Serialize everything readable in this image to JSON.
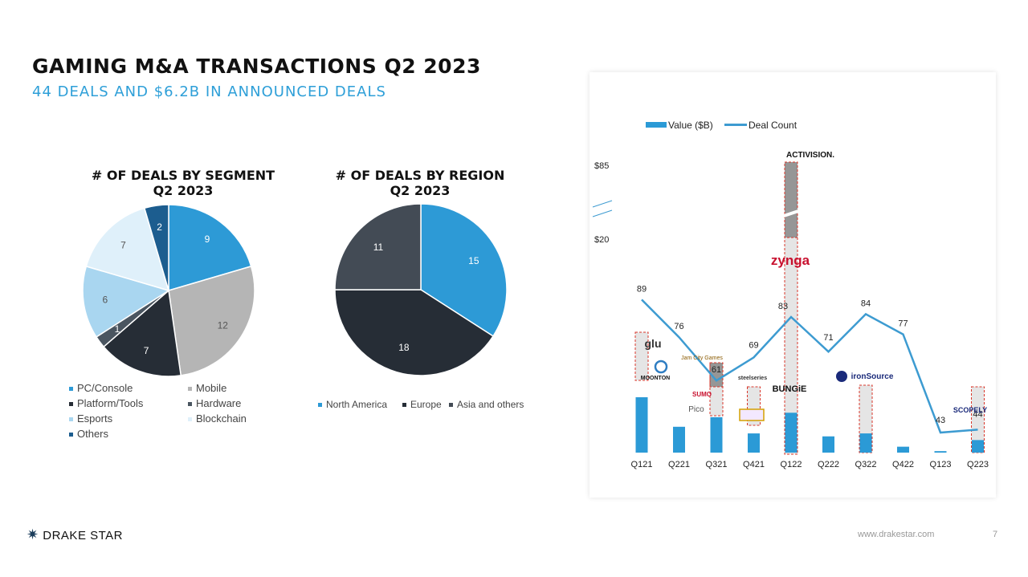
{
  "header": {
    "title": "GAMING M&A TRANSACTIONS Q2 2023",
    "subtitle": "44 DEALS AND $6.2B IN ANNOUNCED DEALS"
  },
  "colors": {
    "accent": "#2e9fd8",
    "line": "#3d9bd1",
    "bar": "#2b9ad6"
  },
  "chart_data": [
    {
      "type": "pie",
      "title_line1": "# OF DEALS BY SEGMENT",
      "title_line2": "Q2 2023",
      "slices": [
        {
          "label": "PC/Console",
          "value": 9,
          "color": "#2d9ad6"
        },
        {
          "label": "Mobile",
          "value": 12,
          "color": "#b5b5b5"
        },
        {
          "label": "Platform/Tools",
          "value": 7,
          "color": "#262d36"
        },
        {
          "label": "Hardware",
          "value": 1,
          "color": "#4a5560"
        },
        {
          "label": "Esports",
          "value": 6,
          "color": "#a9d6f0"
        },
        {
          "label": "Blockchain",
          "value": 7,
          "color": "#dff0fa"
        },
        {
          "label": "Others",
          "value": 2,
          "color": "#1c5d8f"
        }
      ]
    },
    {
      "type": "pie",
      "title_line1": "# OF DEALS BY REGION",
      "title_line2": "Q2 2023",
      "slices": [
        {
          "label": "North America",
          "value": 15,
          "color": "#2d9ad6"
        },
        {
          "label": "Europe",
          "value": 18,
          "color": "#262d36"
        },
        {
          "label": "Asia and others",
          "value": 11,
          "color": "#434b55"
        }
      ]
    },
    {
      "type": "bar",
      "legend": [
        "Value ($B)",
        "Deal Count"
      ],
      "y_tick_labels": [
        "$85",
        "$20"
      ],
      "categories": [
        "Q121",
        "Q221",
        "Q321",
        "Q421",
        "Q122",
        "Q222",
        "Q322",
        "Q422",
        "Q123",
        "Q223"
      ],
      "value_bars": [
        7.5,
        3.5,
        4.8,
        2.6,
        5.4,
        2.2,
        2.6,
        0.8,
        0.2,
        1.7
      ],
      "series": [
        {
          "name": "Deal Count",
          "values": [
            89,
            76,
            61,
            69,
            83,
            71,
            84,
            77,
            43,
            44
          ]
        }
      ],
      "logos": [
        "ACTIVISION.",
        "zynga",
        "glu",
        "MOONTON",
        "Jam City Games",
        "SUMO",
        "Pico",
        "steelseries",
        "BUNGiE",
        "ironSource",
        "SCOPELY"
      ]
    }
  ],
  "footer": {
    "brand": "DRAKE STAR",
    "url": "www.drakestar.com",
    "page": "7"
  }
}
